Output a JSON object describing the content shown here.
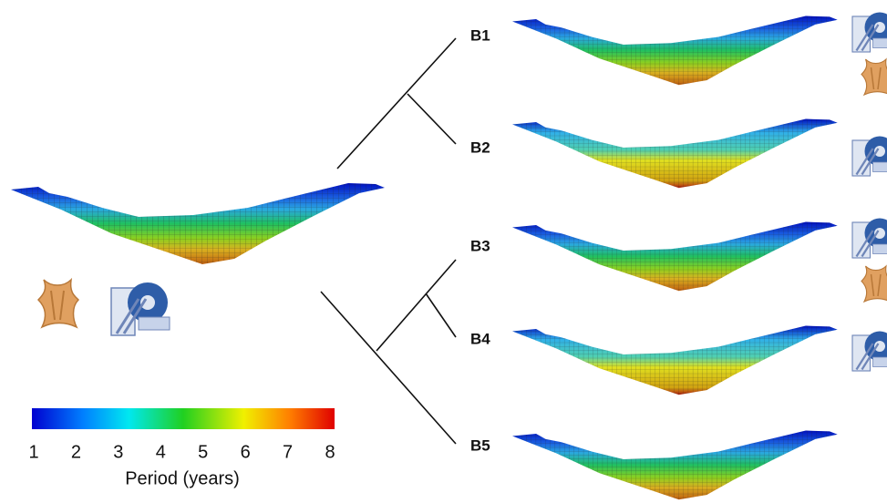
{
  "panels": [
    {
      "label": "B1"
    },
    {
      "label": "B2"
    },
    {
      "label": "B3"
    },
    {
      "label": "B4"
    },
    {
      "label": "B5"
    }
  ],
  "colorbar": {
    "label": "Period (years)",
    "lim": [
      1,
      8
    ],
    "ticks": [
      1,
      2,
      3,
      4,
      5,
      6,
      7,
      8
    ]
  }
}
